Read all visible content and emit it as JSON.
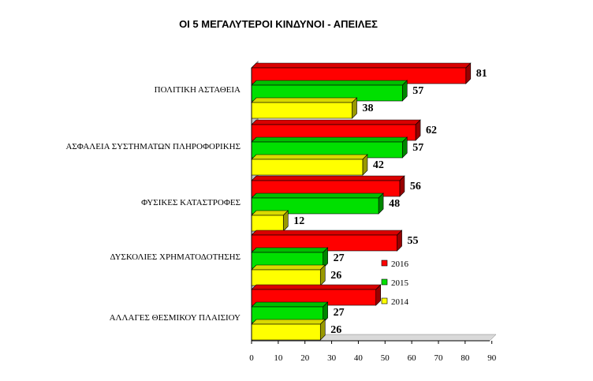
{
  "chart_data": {
    "type": "bar",
    "orientation": "horizontal",
    "title": "ΟΙ 5 ΜΕΓΑΛΥΤΕΡΟΙ ΚΙΝΔΥΝΟΙ - ΑΠΕΙΛΕΣ",
    "categories": [
      "ΠΟΛΙΤΙΚΗ ΑΣΤΑΘΕΙΑ",
      "ΑΣΦΑΛΕΙΑ ΣΥΣΤΗΜΑΤΩΝ ΠΛΗΡΟΦΟΡΙΚΗΣ",
      "ΦΥΣΙΚΕΣ ΚΑΤΑΣΤΡΟΦΕΣ",
      "ΔΥΣΚΟΛΙΕΣ ΧΡΗΜΑΤΟΔΟΤΗΣΗΣ",
      "ΑΛΛΑΓΕΣ ΘΕΣΜΙΚΟΥ ΠΛΑΙΣΙΟΥ"
    ],
    "series": [
      {
        "name": "2016",
        "color": "#ff0000",
        "values": [
          81,
          62,
          56,
          55,
          47
        ],
        "labels": [
          "81",
          "62",
          "56",
          "55",
          ""
        ]
      },
      {
        "name": "2015",
        "color": "#00e000",
        "values": [
          57,
          57,
          48,
          27,
          27
        ],
        "labels": [
          "57",
          "57",
          "48",
          "27",
          "27"
        ]
      },
      {
        "name": "2014",
        "color": "#ffff00",
        "values": [
          38,
          42,
          12,
          26,
          26
        ],
        "labels": [
          "38",
          "42",
          "12",
          "26",
          "26"
        ]
      }
    ],
    "xlim": [
      0,
      90
    ],
    "xticks": [
      0,
      10,
      20,
      30,
      40,
      50,
      60,
      70,
      80,
      90
    ],
    "grid": false,
    "legend_position": "bottom-right, inside plot",
    "style": "3d"
  }
}
